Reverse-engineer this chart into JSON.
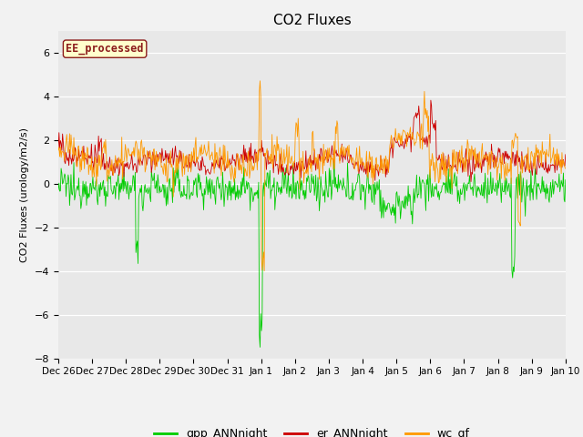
{
  "title": "CO2 Fluxes",
  "ylabel": "CO2 Fluxes (urology/m2/s)",
  "ylim": [
    -8,
    7
  ],
  "yticks": [
    -8,
    -6,
    -4,
    -2,
    0,
    2,
    4,
    6
  ],
  "background_color": "#f2f2f2",
  "plot_bg_color": "#e8e8e8",
  "annotation_text": "EE_processed",
  "annotation_bg": "#ffffcc",
  "annotation_border": "#8b1a1a",
  "annotation_text_color": "#8b1a1a",
  "line_colors": {
    "gpp": "#00cc00",
    "er": "#cc0000",
    "wc": "#ff9900"
  },
  "legend_labels": [
    "gpp_ANNnight",
    "er_ANNnight",
    "wc_gf"
  ],
  "n_points": 720,
  "tick_labels": [
    "Dec 26",
    "Dec 27",
    "Dec 28",
    "Dec 29",
    "Dec 30",
    "Dec 31",
    "Jan 1",
    "Jan 2",
    "Jan 3",
    "Jan 4",
    "Jan 5",
    "Jan 6",
    "Jan 7",
    "Jan 8",
    "Jan 9",
    "Jan 10"
  ]
}
